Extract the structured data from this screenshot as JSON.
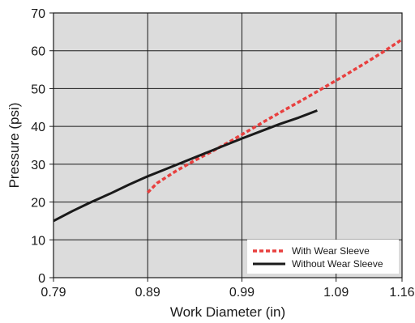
{
  "chart_data": {
    "type": "line",
    "title": "",
    "xlabel": "Work Diameter (in)",
    "ylabel": "Pressure (psi)",
    "xlim": [
      0.79,
      1.16
    ],
    "ylim": [
      0,
      70
    ],
    "x_ticks": [
      0.79,
      0.89,
      0.99,
      1.09,
      1.16
    ],
    "x_tick_labels": [
      "0.79",
      "0.89",
      "0.99",
      "1.09",
      "1.16"
    ],
    "y_ticks": [
      0,
      10,
      20,
      30,
      40,
      50,
      60,
      70
    ],
    "y_tick_labels": [
      "0",
      "10",
      "20",
      "30",
      "40",
      "50",
      "60",
      "70"
    ],
    "grid": true,
    "plot_background": "#dcdcdc",
    "legend_position": "bottom-right",
    "series": [
      {
        "name": "With Wear Sleeve",
        "color": "#e8403f",
        "style": "dashed",
        "x": [
          0.89,
          0.9,
          0.92,
          0.94,
          0.96,
          0.98,
          1.0,
          1.02,
          1.04,
          1.06,
          1.08,
          1.1,
          1.12,
          1.14,
          1.16
        ],
        "y": [
          22.5,
          25.0,
          28.2,
          31.0,
          33.6,
          36.4,
          39.3,
          42.2,
          45.0,
          47.8,
          50.7,
          53.6,
          56.6,
          59.7,
          63.0
        ]
      },
      {
        "name": "Without Wear Sleeve",
        "color": "#1a1a1a",
        "style": "solid",
        "x": [
          0.79,
          0.81,
          0.83,
          0.85,
          0.87,
          0.89,
          0.91,
          0.93,
          0.95,
          0.97,
          0.99,
          1.01,
          1.03,
          1.05,
          1.07
        ],
        "y": [
          15.0,
          17.6,
          20.0,
          22.2,
          24.6,
          26.8,
          28.8,
          30.8,
          32.8,
          34.8,
          36.8,
          38.7,
          40.6,
          42.3,
          44.2
        ]
      }
    ]
  }
}
